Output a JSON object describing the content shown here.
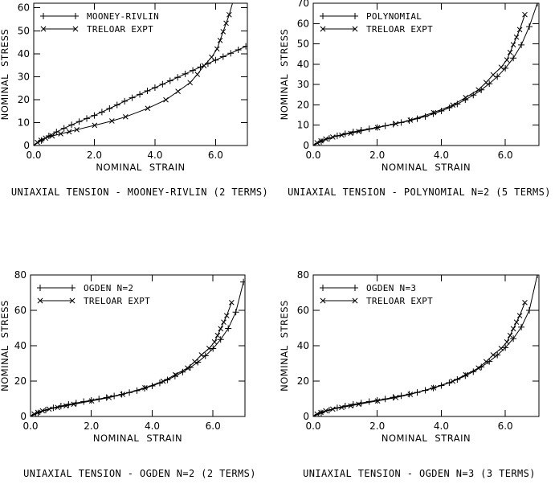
{
  "page": {
    "background": "#ffffff",
    "line_color": "#000000",
    "text_color": "#000000"
  },
  "shared_series": {
    "treloar_expt": {
      "label": "TRELOAR EXPT",
      "marker": "cross",
      "points": [
        [
          0,
          0
        ],
        [
          0.01,
          0.03
        ],
        [
          0.12,
          1.37
        ],
        [
          0.24,
          2.3
        ],
        [
          0.39,
          3.23
        ],
        [
          0.61,
          4.16
        ],
        [
          0.89,
          5.1
        ],
        [
          1.17,
          6.0
        ],
        [
          1.42,
          6.9
        ],
        [
          2.01,
          8.8
        ],
        [
          2.58,
          10.7
        ],
        [
          3.03,
          12.5
        ],
        [
          3.76,
          16.2
        ],
        [
          4.36,
          19.9
        ],
        [
          4.76,
          23.6
        ],
        [
          5.16,
          27.4
        ],
        [
          5.4,
          31.0
        ],
        [
          5.62,
          34.8
        ],
        [
          5.87,
          38.5
        ],
        [
          6.05,
          42.1
        ],
        [
          6.15,
          45.8
        ],
        [
          6.25,
          49.6
        ],
        [
          6.35,
          53.3
        ],
        [
          6.45,
          57.0
        ],
        [
          6.61,
          64.4
        ]
      ]
    }
  },
  "chart_data": [
    {
      "type": "line",
      "caption": "UNIAXIAL TENSION - MOONEY-RIVLIN (2 TERMS)",
      "xlabel": "NOMINAL STRAIN",
      "ylabel": "NOMINAL STRESS",
      "xlim": [
        0,
        7.05
      ],
      "ylim": [
        0,
        62
      ],
      "xticks": [
        0,
        2,
        4,
        6
      ],
      "xtick_labels": [
        "0.0",
        "2.0",
        "4.0",
        "6.0"
      ],
      "yticks": [
        0,
        10,
        20,
        30,
        40,
        50,
        60
      ],
      "ytick_labels": [
        "0",
        "10",
        "20",
        "30",
        "40",
        "50",
        "60"
      ],
      "grid": false,
      "legend_position": "upper-left",
      "legend": [
        "MOONEY-RIVLIN",
        "TRELOAR EXPT"
      ],
      "series": [
        {
          "name": "MOONEY-RIVLIN",
          "marker": "plus",
          "points": [
            [
              0,
              0
            ],
            [
              0.25,
              2.2
            ],
            [
              0.5,
              4.2
            ],
            [
              0.75,
              5.9
            ],
            [
              1,
              7.5
            ],
            [
              1.25,
              9.0
            ],
            [
              1.5,
              10.4
            ],
            [
              1.75,
              11.8
            ],
            [
              2,
              13.1
            ],
            [
              2.25,
              14.6
            ],
            [
              2.5,
              16.1
            ],
            [
              2.75,
              17.7
            ],
            [
              3,
              19.3
            ],
            [
              3.25,
              20.8
            ],
            [
              3.5,
              22.3
            ],
            [
              3.75,
              23.8
            ],
            [
              4,
              25.2
            ],
            [
              4.25,
              26.7
            ],
            [
              4.5,
              28.2
            ],
            [
              4.75,
              29.7
            ],
            [
              5,
              31.2
            ],
            [
              5.25,
              32.7
            ],
            [
              5.5,
              34.2
            ],
            [
              5.75,
              35.7
            ],
            [
              6,
              37.2
            ],
            [
              6.25,
              38.7
            ],
            [
              6.5,
              40.2
            ],
            [
              6.75,
              41.7
            ],
            [
              7,
              43.2
            ]
          ]
        },
        {
          "name": "TRELOAR EXPT",
          "marker": "cross",
          "points_ref": "treloar_expt"
        }
      ]
    },
    {
      "type": "line",
      "caption": "UNIAXIAL TENSION - POLYNOMIAL N=2 (5 TERMS)",
      "xlabel": "NOMINAL STRAIN",
      "ylabel": "NOMINAL STRESS",
      "xlim": [
        0,
        7.05
      ],
      "ylim": [
        0,
        70
      ],
      "xticks": [
        0,
        2,
        4,
        6
      ],
      "xtick_labels": [
        "0.0",
        "2.0",
        "4.0",
        "6.0"
      ],
      "yticks": [
        0,
        10,
        20,
        30,
        40,
        50,
        60,
        70
      ],
      "ytick_labels": [
        "0",
        "10",
        "20",
        "30",
        "40",
        "50",
        "60",
        "70"
      ],
      "grid": false,
      "legend_position": "upper-left",
      "legend": [
        "POLYNOMIAL",
        "TRELOAR EXPT"
      ],
      "series": [
        {
          "name": "POLYNOMIAL",
          "marker": "plus",
          "points": [
            [
              0,
              0
            ],
            [
              0.25,
              1.9
            ],
            [
              0.5,
              3.5
            ],
            [
              0.75,
              4.8
            ],
            [
              1,
              5.8
            ],
            [
              1.25,
              6.7
            ],
            [
              1.5,
              7.5
            ],
            [
              1.75,
              8.2
            ],
            [
              2,
              8.9
            ],
            [
              2.25,
              9.7
            ],
            [
              2.5,
              10.5
            ],
            [
              2.75,
              11.3
            ],
            [
              3,
              12.2
            ],
            [
              3.25,
              13.2
            ],
            [
              3.5,
              14.3
            ],
            [
              3.75,
              15.6
            ],
            [
              4,
              17.0
            ],
            [
              4.25,
              18.6
            ],
            [
              4.5,
              20.4
            ],
            [
              4.75,
              22.5
            ],
            [
              5,
              24.8
            ],
            [
              5.25,
              27.4
            ],
            [
              5.5,
              30.4
            ],
            [
              5.75,
              33.9
            ],
            [
              6,
              38.0
            ],
            [
              6.25,
              43.0
            ],
            [
              6.5,
              49.5
            ],
            [
              6.75,
              58.5
            ],
            [
              7,
              70
            ]
          ]
        },
        {
          "name": "TRELOAR EXPT",
          "marker": "cross",
          "points_ref": "treloar_expt"
        }
      ]
    },
    {
      "type": "line",
      "caption": "UNIAXIAL TENSION - OGDEN N=2 (2 TERMS)",
      "xlabel": "NOMINAL STRAIN",
      "ylabel": "NOMINAL STRESS",
      "xlim": [
        0,
        7.05
      ],
      "ylim": [
        0,
        80
      ],
      "xticks": [
        0,
        2,
        4,
        6
      ],
      "xtick_labels": [
        "0.0",
        "2.0",
        "4.0",
        "6.0"
      ],
      "yticks": [
        0,
        20,
        40,
        60,
        80
      ],
      "ytick_labels": [
        "0",
        "20",
        "40",
        "60",
        "80"
      ],
      "grid": false,
      "legend_position": "upper-left",
      "legend": [
        "OGDEN N=2",
        "TRELOAR EXPT"
      ],
      "series": [
        {
          "name": "OGDEN N=2",
          "marker": "plus",
          "points": [
            [
              0,
              0
            ],
            [
              0.25,
              2.0
            ],
            [
              0.5,
              3.6
            ],
            [
              0.75,
              4.9
            ],
            [
              1,
              5.9
            ],
            [
              1.25,
              6.8
            ],
            [
              1.5,
              7.6
            ],
            [
              1.75,
              8.4
            ],
            [
              2,
              9.1
            ],
            [
              2.25,
              9.9
            ],
            [
              2.5,
              10.7
            ],
            [
              2.75,
              11.6
            ],
            [
              3,
              12.5
            ],
            [
              3.25,
              13.5
            ],
            [
              3.5,
              14.6
            ],
            [
              3.75,
              15.9
            ],
            [
              4,
              17.3
            ],
            [
              4.25,
              18.9
            ],
            [
              4.5,
              20.7
            ],
            [
              4.75,
              22.8
            ],
            [
              5,
              25.1
            ],
            [
              5.25,
              27.7
            ],
            [
              5.5,
              30.7
            ],
            [
              5.75,
              34.3
            ],
            [
              6,
              38.4
            ],
            [
              6.25,
              43.5
            ],
            [
              6.5,
              49.8
            ],
            [
              6.75,
              59.0
            ],
            [
              7,
              76
            ]
          ]
        },
        {
          "name": "TRELOAR EXPT",
          "marker": "cross",
          "points_ref": "treloar_expt"
        }
      ]
    },
    {
      "type": "line",
      "caption": "UNIAXIAL TENSION - OGDEN N=3 (3 TERMS)",
      "xlabel": "NOMINAL STRAIN",
      "ylabel": "NOMINAL STRESS",
      "xlim": [
        0,
        7.05
      ],
      "ylim": [
        0,
        80
      ],
      "xticks": [
        0,
        2,
        4,
        6
      ],
      "xtick_labels": [
        "0.0",
        "2.0",
        "4.0",
        "6.0"
      ],
      "yticks": [
        0,
        20,
        40,
        60,
        80
      ],
      "ytick_labels": [
        "0",
        "20",
        "40",
        "60",
        "80"
      ],
      "grid": false,
      "legend_position": "upper-left",
      "legend": [
        "OGDEN N=3",
        "TRELOAR EXPT"
      ],
      "series": [
        {
          "name": "OGDEN N=3",
          "marker": "plus",
          "points": [
            [
              0,
              0
            ],
            [
              0.25,
              2.0
            ],
            [
              0.5,
              3.6
            ],
            [
              0.75,
              4.9
            ],
            [
              1,
              5.9
            ],
            [
              1.25,
              6.8
            ],
            [
              1.5,
              7.6
            ],
            [
              1.75,
              8.4
            ],
            [
              2,
              9.1
            ],
            [
              2.25,
              9.9
            ],
            [
              2.5,
              10.8
            ],
            [
              2.75,
              11.7
            ],
            [
              3,
              12.6
            ],
            [
              3.25,
              13.6
            ],
            [
              3.5,
              14.8
            ],
            [
              3.75,
              16.1
            ],
            [
              4,
              17.5
            ],
            [
              4.25,
              19.1
            ],
            [
              4.5,
              20.9
            ],
            [
              4.75,
              23.0
            ],
            [
              5,
              25.3
            ],
            [
              5.25,
              28.0
            ],
            [
              5.5,
              31.1
            ],
            [
              5.75,
              34.7
            ],
            [
              6,
              38.9
            ],
            [
              6.25,
              44.0
            ],
            [
              6.5,
              50.5
            ],
            [
              6.75,
              60.0
            ],
            [
              7,
              80
            ]
          ]
        },
        {
          "name": "TRELOAR EXPT",
          "marker": "cross",
          "points_ref": "treloar_expt"
        }
      ]
    }
  ]
}
